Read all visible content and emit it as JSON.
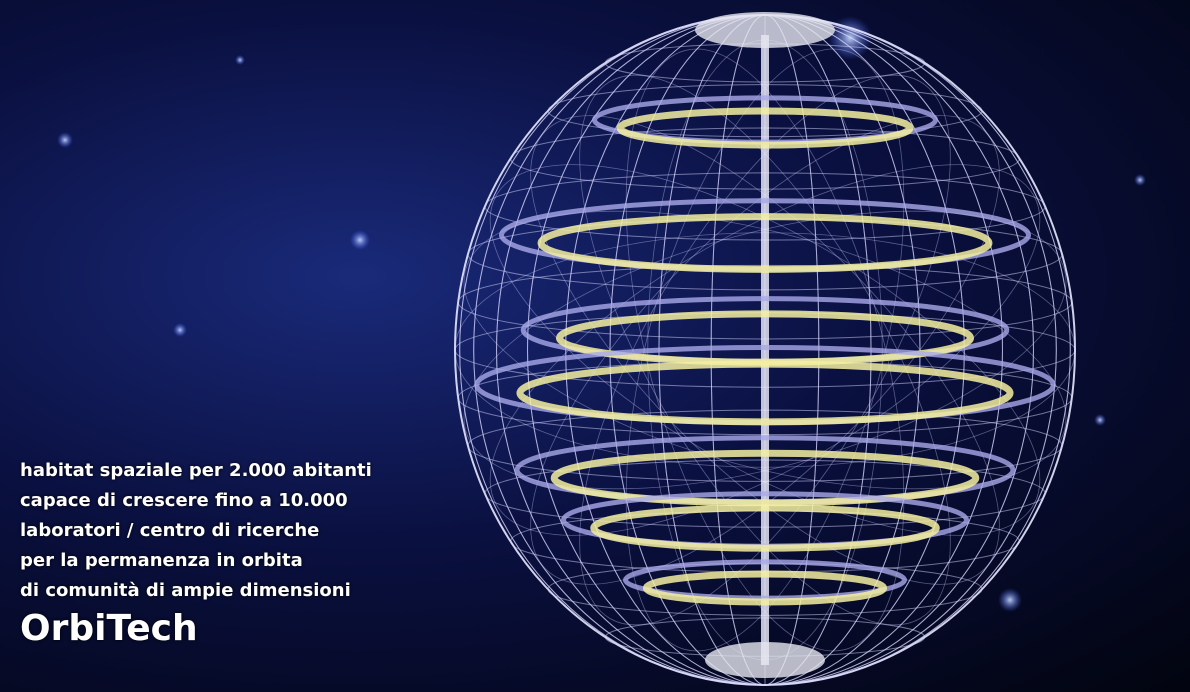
{
  "caption": {
    "lines": [
      "habitat spaziale per 2.000 abitanti",
      "capace di crescere fino a 10.000",
      "laboratori / centro di ricerche",
      "per la permanenza in orbita",
      "di comunità di ampie dimensioni"
    ]
  },
  "title": "OrbiTech"
}
